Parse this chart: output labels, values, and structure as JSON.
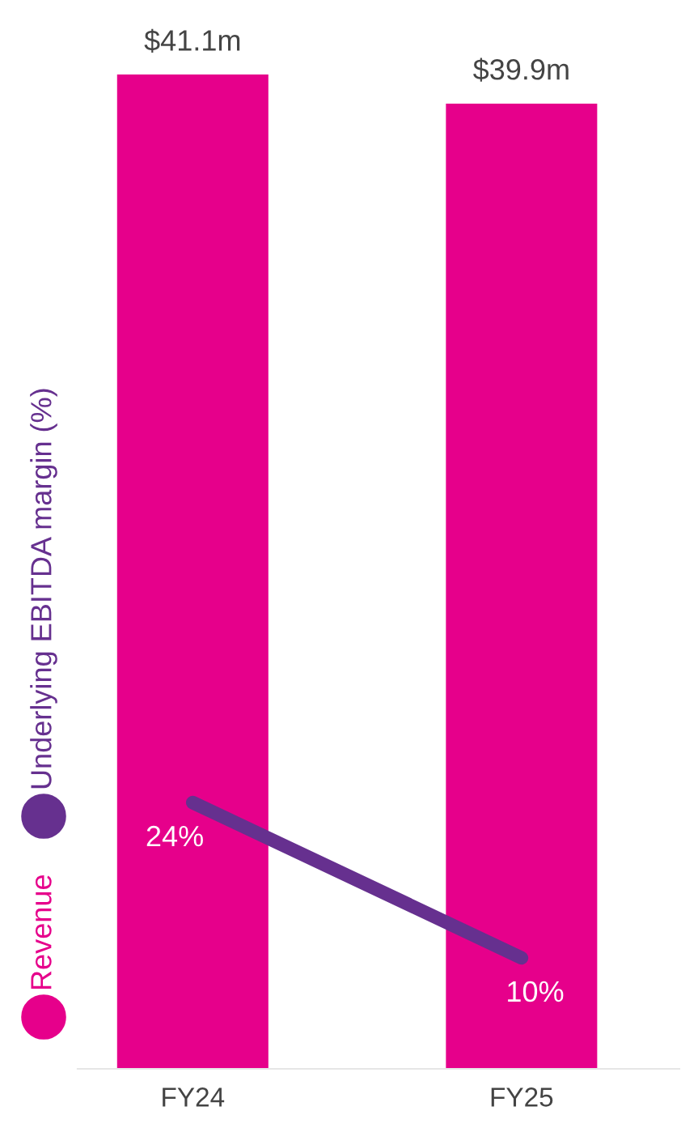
{
  "chart_data": {
    "type": "bar",
    "categories": [
      "FY24",
      "FY25"
    ],
    "series": [
      {
        "name": "Revenue",
        "color": "#e6008b",
        "values": [
          41.1,
          39.9
        ],
        "value_labels": [
          "$41.1m",
          "$39.9m"
        ]
      },
      {
        "name": "Underlying EBITDA margin (%)",
        "type": "line",
        "axis": "y2",
        "color": "#66308f",
        "values": [
          24,
          10
        ],
        "value_labels": [
          "24%",
          "10%"
        ]
      }
    ],
    "tick_labels": "x",
    "legend": "left",
    "grid": false,
    "marker": "none",
    "line_style": "solid"
  }
}
